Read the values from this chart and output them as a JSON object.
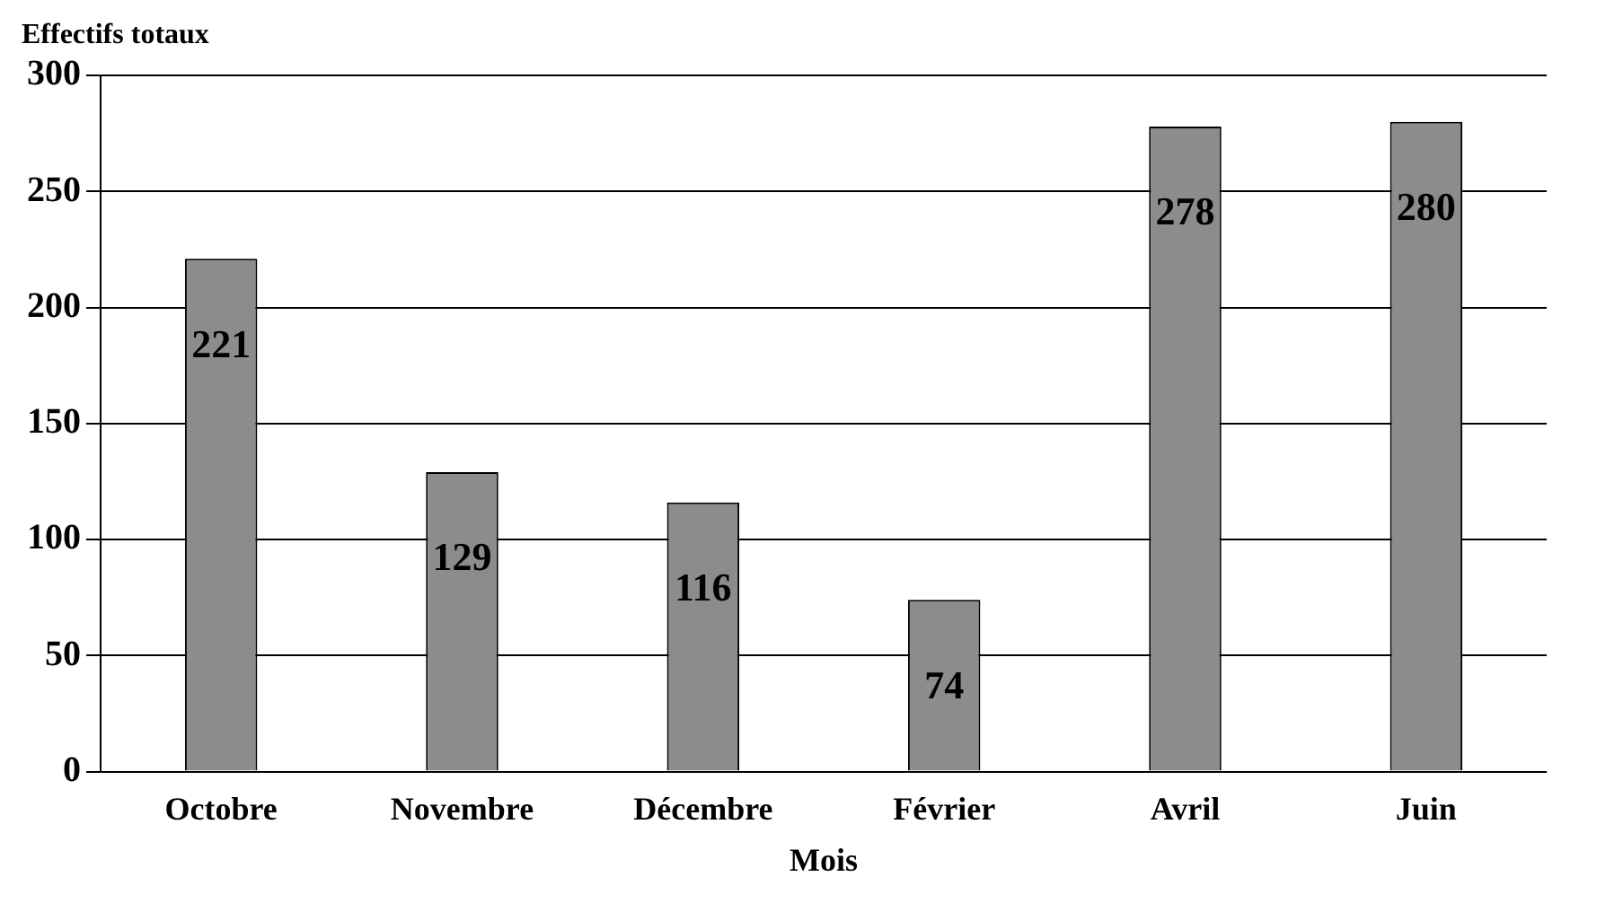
{
  "chart_data": {
    "type": "bar",
    "xlabel": "Mois",
    "ylabel": "Effectifs totaux",
    "categories": [
      "Octobre",
      "Novembre",
      "Décembre",
      "Février",
      "Avril",
      "Juin"
    ],
    "values": [
      221,
      129,
      116,
      74,
      278,
      280
    ],
    "color": "#8c8c8c",
    "ylim": [
      0,
      300
    ],
    "yticks": [
      0,
      50,
      100,
      150,
      200,
      250,
      300
    ],
    "grid": "y",
    "data_labels": true,
    "legend": false
  }
}
